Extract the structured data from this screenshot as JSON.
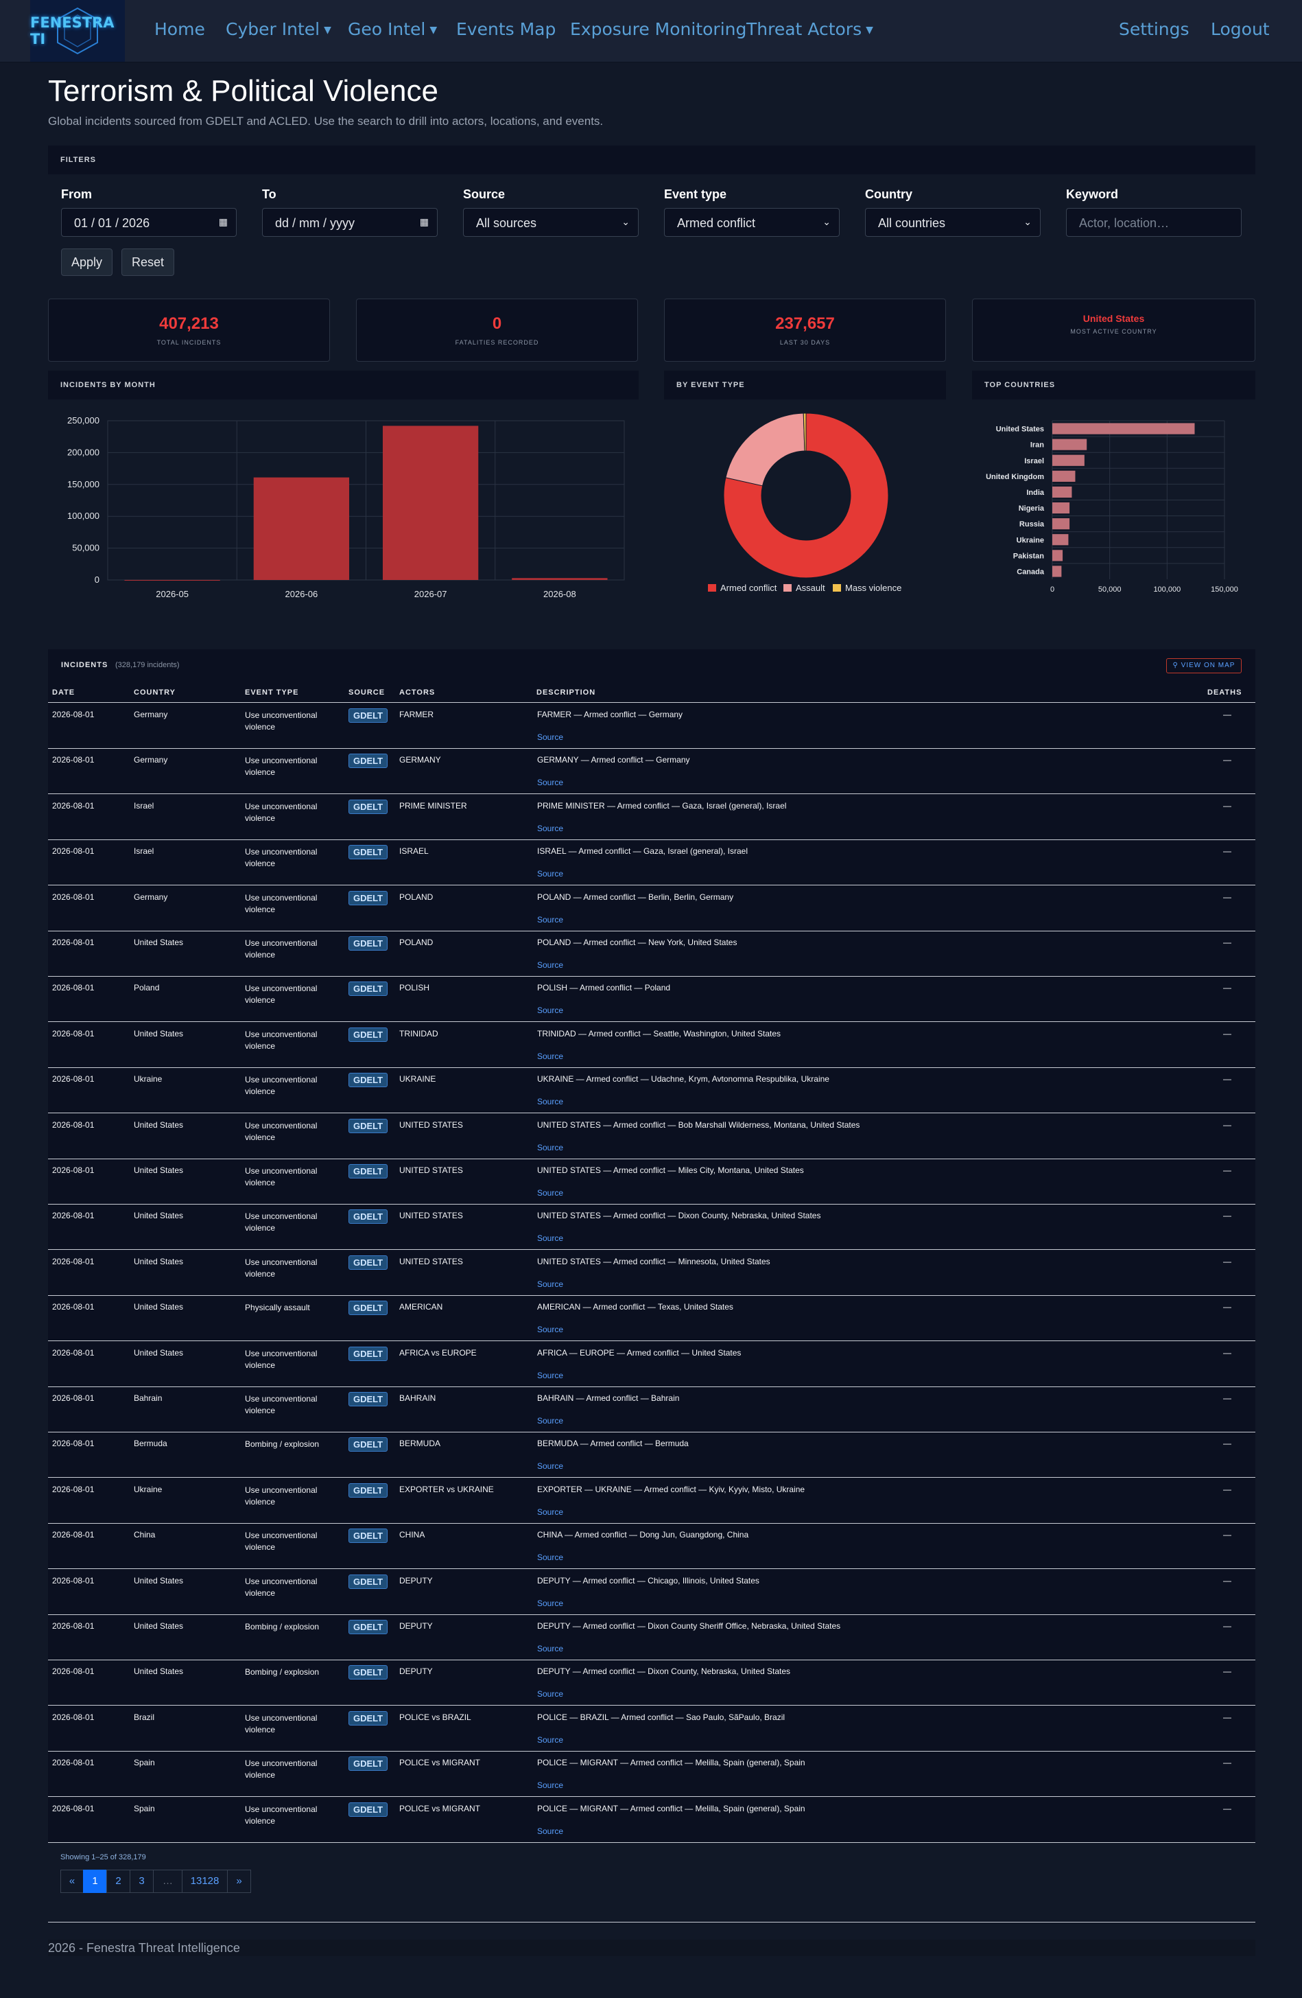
{
  "nav": {
    "logo": "FENESTRA TI",
    "items": [
      "Home",
      "Cyber Intel",
      "Geo Intel",
      "Events Map",
      "Exposure Monitoring",
      "Threat Actors"
    ],
    "settings": "Settings",
    "logout": "Logout"
  },
  "page": {
    "title": "Terrorism & Political Violence",
    "subtitle": "Global incidents sourced from GDELT and ACLED. Use the search to drill into actors, locations, and events."
  },
  "filters": {
    "heading": "FILTERS",
    "from_label": "From",
    "from_value": "01 / 01 / 2026",
    "to_label": "To",
    "to_value": "dd / mm / yyyy",
    "source_label": "Source",
    "source_value": "All sources",
    "event_label": "Event type",
    "event_value": "Armed conflict",
    "country_label": "Country",
    "country_value": "All countries",
    "keyword_label": "Keyword",
    "keyword_placeholder": "Actor, location…",
    "apply": "Apply",
    "reset": "Reset"
  },
  "stats": {
    "total_value": "407,213",
    "total_label": "TOTAL INCIDENTS",
    "fatal_value": "0",
    "fatal_label": "FATALITIES RECORDED",
    "last30_value": "237,657",
    "last30_label": "LAST 30 DAYS",
    "country_value": "United States",
    "country_label": "MOST ACTIVE COUNTRY"
  },
  "panels": {
    "month": "INCIDENTS BY MONTH",
    "event": "BY EVENT TYPE",
    "countries": "TOP COUNTRIES"
  },
  "chart_data": [
    {
      "type": "bar",
      "title": "INCIDENTS BY MONTH",
      "categories": [
        "2026-05",
        "2026-06",
        "2026-07",
        "2026-08"
      ],
      "values": [
        0,
        161000,
        242000,
        3000
      ],
      "ylim": [
        0,
        250000
      ],
      "yticks": [
        "250,000",
        "200,000",
        "150,000",
        "100,000",
        "50,000",
        "0"
      ],
      "color": "#b03035",
      "grid": true
    },
    {
      "type": "pie",
      "title": "BY EVENT TYPE",
      "labels": [
        "Armed conflict",
        "Assault",
        "Mass violence"
      ],
      "values": [
        78.5,
        21,
        0.5
      ],
      "colors": [
        "#e53935",
        "#ee9a9a",
        "#f2c14e"
      ],
      "legend": "bottom"
    },
    {
      "type": "bar",
      "title": "TOP COUNTRIES",
      "orientation": "horizontal",
      "categories": [
        "United States",
        "Iran",
        "Israel",
        "United Kingdom",
        "India",
        "Nigeria",
        "Russia",
        "Ukraine",
        "Pakistan",
        "Canada"
      ],
      "values": [
        124000,
        30000,
        28000,
        20000,
        17000,
        15000,
        15000,
        14000,
        9000,
        8000
      ],
      "xlim": [
        0,
        150000
      ],
      "xticks": [
        "0",
        "50,000",
        "100,000",
        "150,000"
      ],
      "color": "#c0727a",
      "grid": true
    }
  ],
  "table": {
    "heading": "INCIDENTS",
    "count": "(328,179 incidents)",
    "view_map": "⚲ VIEW ON MAP",
    "columns": [
      "DATE",
      "COUNTRY",
      "EVENT TYPE",
      "SOURCE",
      "ACTORS",
      "DESCRIPTION",
      "DEATHS"
    ],
    "source_link": "Source",
    "rows": [
      {
        "date": "2026-08-01",
        "country": "Germany",
        "event": "Use unconventional violence",
        "source": "GDELT",
        "actors": "FARMER",
        "desc": "FARMER — Armed conflict — Germany",
        "deaths": "—"
      },
      {
        "date": "2026-08-01",
        "country": "Germany",
        "event": "Use unconventional violence",
        "source": "GDELT",
        "actors": "GERMANY",
        "desc": "GERMANY — Armed conflict — Germany",
        "deaths": "—"
      },
      {
        "date": "2026-08-01",
        "country": "Israel",
        "event": "Use unconventional violence",
        "source": "GDELT",
        "actors": "PRIME MINISTER",
        "desc": "PRIME MINISTER — Armed conflict — Gaza, Israel (general), Israel",
        "deaths": "—"
      },
      {
        "date": "2026-08-01",
        "country": "Israel",
        "event": "Use unconventional violence",
        "source": "GDELT",
        "actors": "ISRAEL",
        "desc": "ISRAEL — Armed conflict — Gaza, Israel (general), Israel",
        "deaths": "—"
      },
      {
        "date": "2026-08-01",
        "country": "Germany",
        "event": "Use unconventional violence",
        "source": "GDELT",
        "actors": "POLAND",
        "desc": "POLAND — Armed conflict — Berlin, Berlin, Germany",
        "deaths": "—"
      },
      {
        "date": "2026-08-01",
        "country": "United States",
        "event": "Use unconventional violence",
        "source": "GDELT",
        "actors": "POLAND",
        "desc": "POLAND — Armed conflict — New York, United States",
        "deaths": "—"
      },
      {
        "date": "2026-08-01",
        "country": "Poland",
        "event": "Use unconventional violence",
        "source": "GDELT",
        "actors": "POLISH",
        "desc": "POLISH — Armed conflict — Poland",
        "deaths": "—"
      },
      {
        "date": "2026-08-01",
        "country": "United States",
        "event": "Use unconventional violence",
        "source": "GDELT",
        "actors": "TRINIDAD",
        "desc": "TRINIDAD — Armed conflict — Seattle, Washington, United States",
        "deaths": "—"
      },
      {
        "date": "2026-08-01",
        "country": "Ukraine",
        "event": "Use unconventional violence",
        "source": "GDELT",
        "actors": "UKRAINE",
        "desc": "UKRAINE — Armed conflict — Udachne, Krym, Avtonomna Respublika, Ukraine",
        "deaths": "—"
      },
      {
        "date": "2026-08-01",
        "country": "United States",
        "event": "Use unconventional violence",
        "source": "GDELT",
        "actors": "UNITED STATES",
        "desc": "UNITED STATES — Armed conflict — Bob Marshall Wilderness, Montana, United States",
        "deaths": "—"
      },
      {
        "date": "2026-08-01",
        "country": "United States",
        "event": "Use unconventional violence",
        "source": "GDELT",
        "actors": "UNITED STATES",
        "desc": "UNITED STATES — Armed conflict — Miles City, Montana, United States",
        "deaths": "—"
      },
      {
        "date": "2026-08-01",
        "country": "United States",
        "event": "Use unconventional violence",
        "source": "GDELT",
        "actors": "UNITED STATES",
        "desc": "UNITED STATES — Armed conflict — Dixon County, Nebraska, United States",
        "deaths": "—"
      },
      {
        "date": "2026-08-01",
        "country": "United States",
        "event": "Use unconventional violence",
        "source": "GDELT",
        "actors": "UNITED STATES",
        "desc": "UNITED STATES — Armed conflict — Minnesota, United States",
        "deaths": "—"
      },
      {
        "date": "2026-08-01",
        "country": "United States",
        "event": "Physically assault",
        "source": "GDELT",
        "actors": "AMERICAN",
        "desc": "AMERICAN — Armed conflict — Texas, United States",
        "deaths": "—"
      },
      {
        "date": "2026-08-01",
        "country": "United States",
        "event": "Use unconventional violence",
        "source": "GDELT",
        "actors": "AFRICA vs EUROPE",
        "desc": "AFRICA — EUROPE — Armed conflict — United States",
        "deaths": "—"
      },
      {
        "date": "2026-08-01",
        "country": "Bahrain",
        "event": "Use unconventional violence",
        "source": "GDELT",
        "actors": "BAHRAIN",
        "desc": "BAHRAIN — Armed conflict — Bahrain",
        "deaths": "—"
      },
      {
        "date": "2026-08-01",
        "country": "Bermuda",
        "event": "Bombing / explosion",
        "source": "GDELT",
        "actors": "BERMUDA",
        "desc": "BERMUDA — Armed conflict — Bermuda",
        "deaths": "—"
      },
      {
        "date": "2026-08-01",
        "country": "Ukraine",
        "event": "Use unconventional violence",
        "source": "GDELT",
        "actors": "EXPORTER vs UKRAINE",
        "desc": "EXPORTER — UKRAINE — Armed conflict — Kyiv, Kyyiv, Misto, Ukraine",
        "deaths": "—"
      },
      {
        "date": "2026-08-01",
        "country": "China",
        "event": "Use unconventional violence",
        "source": "GDELT",
        "actors": "CHINA",
        "desc": "CHINA — Armed conflict — Dong Jun, Guangdong, China",
        "deaths": "—"
      },
      {
        "date": "2026-08-01",
        "country": "United States",
        "event": "Use unconventional violence",
        "source": "GDELT",
        "actors": "DEPUTY",
        "desc": "DEPUTY — Armed conflict — Chicago, Illinois, United States",
        "deaths": "—"
      },
      {
        "date": "2026-08-01",
        "country": "United States",
        "event": "Bombing / explosion",
        "source": "GDELT",
        "actors": "DEPUTY",
        "desc": "DEPUTY — Armed conflict — Dixon County Sheriff Office, Nebraska, United States",
        "deaths": "—"
      },
      {
        "date": "2026-08-01",
        "country": "United States",
        "event": "Bombing / explosion",
        "source": "GDELT",
        "actors": "DEPUTY",
        "desc": "DEPUTY — Armed conflict — Dixon County, Nebraska, United States",
        "deaths": "—"
      },
      {
        "date": "2026-08-01",
        "country": "Brazil",
        "event": "Use unconventional violence",
        "source": "GDELT",
        "actors": "POLICE vs BRAZIL",
        "desc": "POLICE — BRAZIL — Armed conflict — Sao Paulo, SãPaulo, Brazil",
        "deaths": "—"
      },
      {
        "date": "2026-08-01",
        "country": "Spain",
        "event": "Use unconventional violence",
        "source": "GDELT",
        "actors": "POLICE vs MIGRANT",
        "desc": "POLICE — MIGRANT — Armed conflict — Melilla, Spain (general), Spain",
        "deaths": "—"
      },
      {
        "date": "2026-08-01",
        "country": "Spain",
        "event": "Use unconventional violence",
        "source": "GDELT",
        "actors": "POLICE vs MIGRANT",
        "desc": "POLICE — MIGRANT — Armed conflict — Melilla, Spain (general), Spain",
        "deaths": "—"
      }
    ]
  },
  "pagination": {
    "showing": "Showing 1–25 of 328,179",
    "pages": [
      "«",
      "1",
      "2",
      "3",
      "…",
      "13128",
      "»"
    ],
    "active": "1"
  },
  "footer": "2026 - Fenestra Threat Intelligence"
}
